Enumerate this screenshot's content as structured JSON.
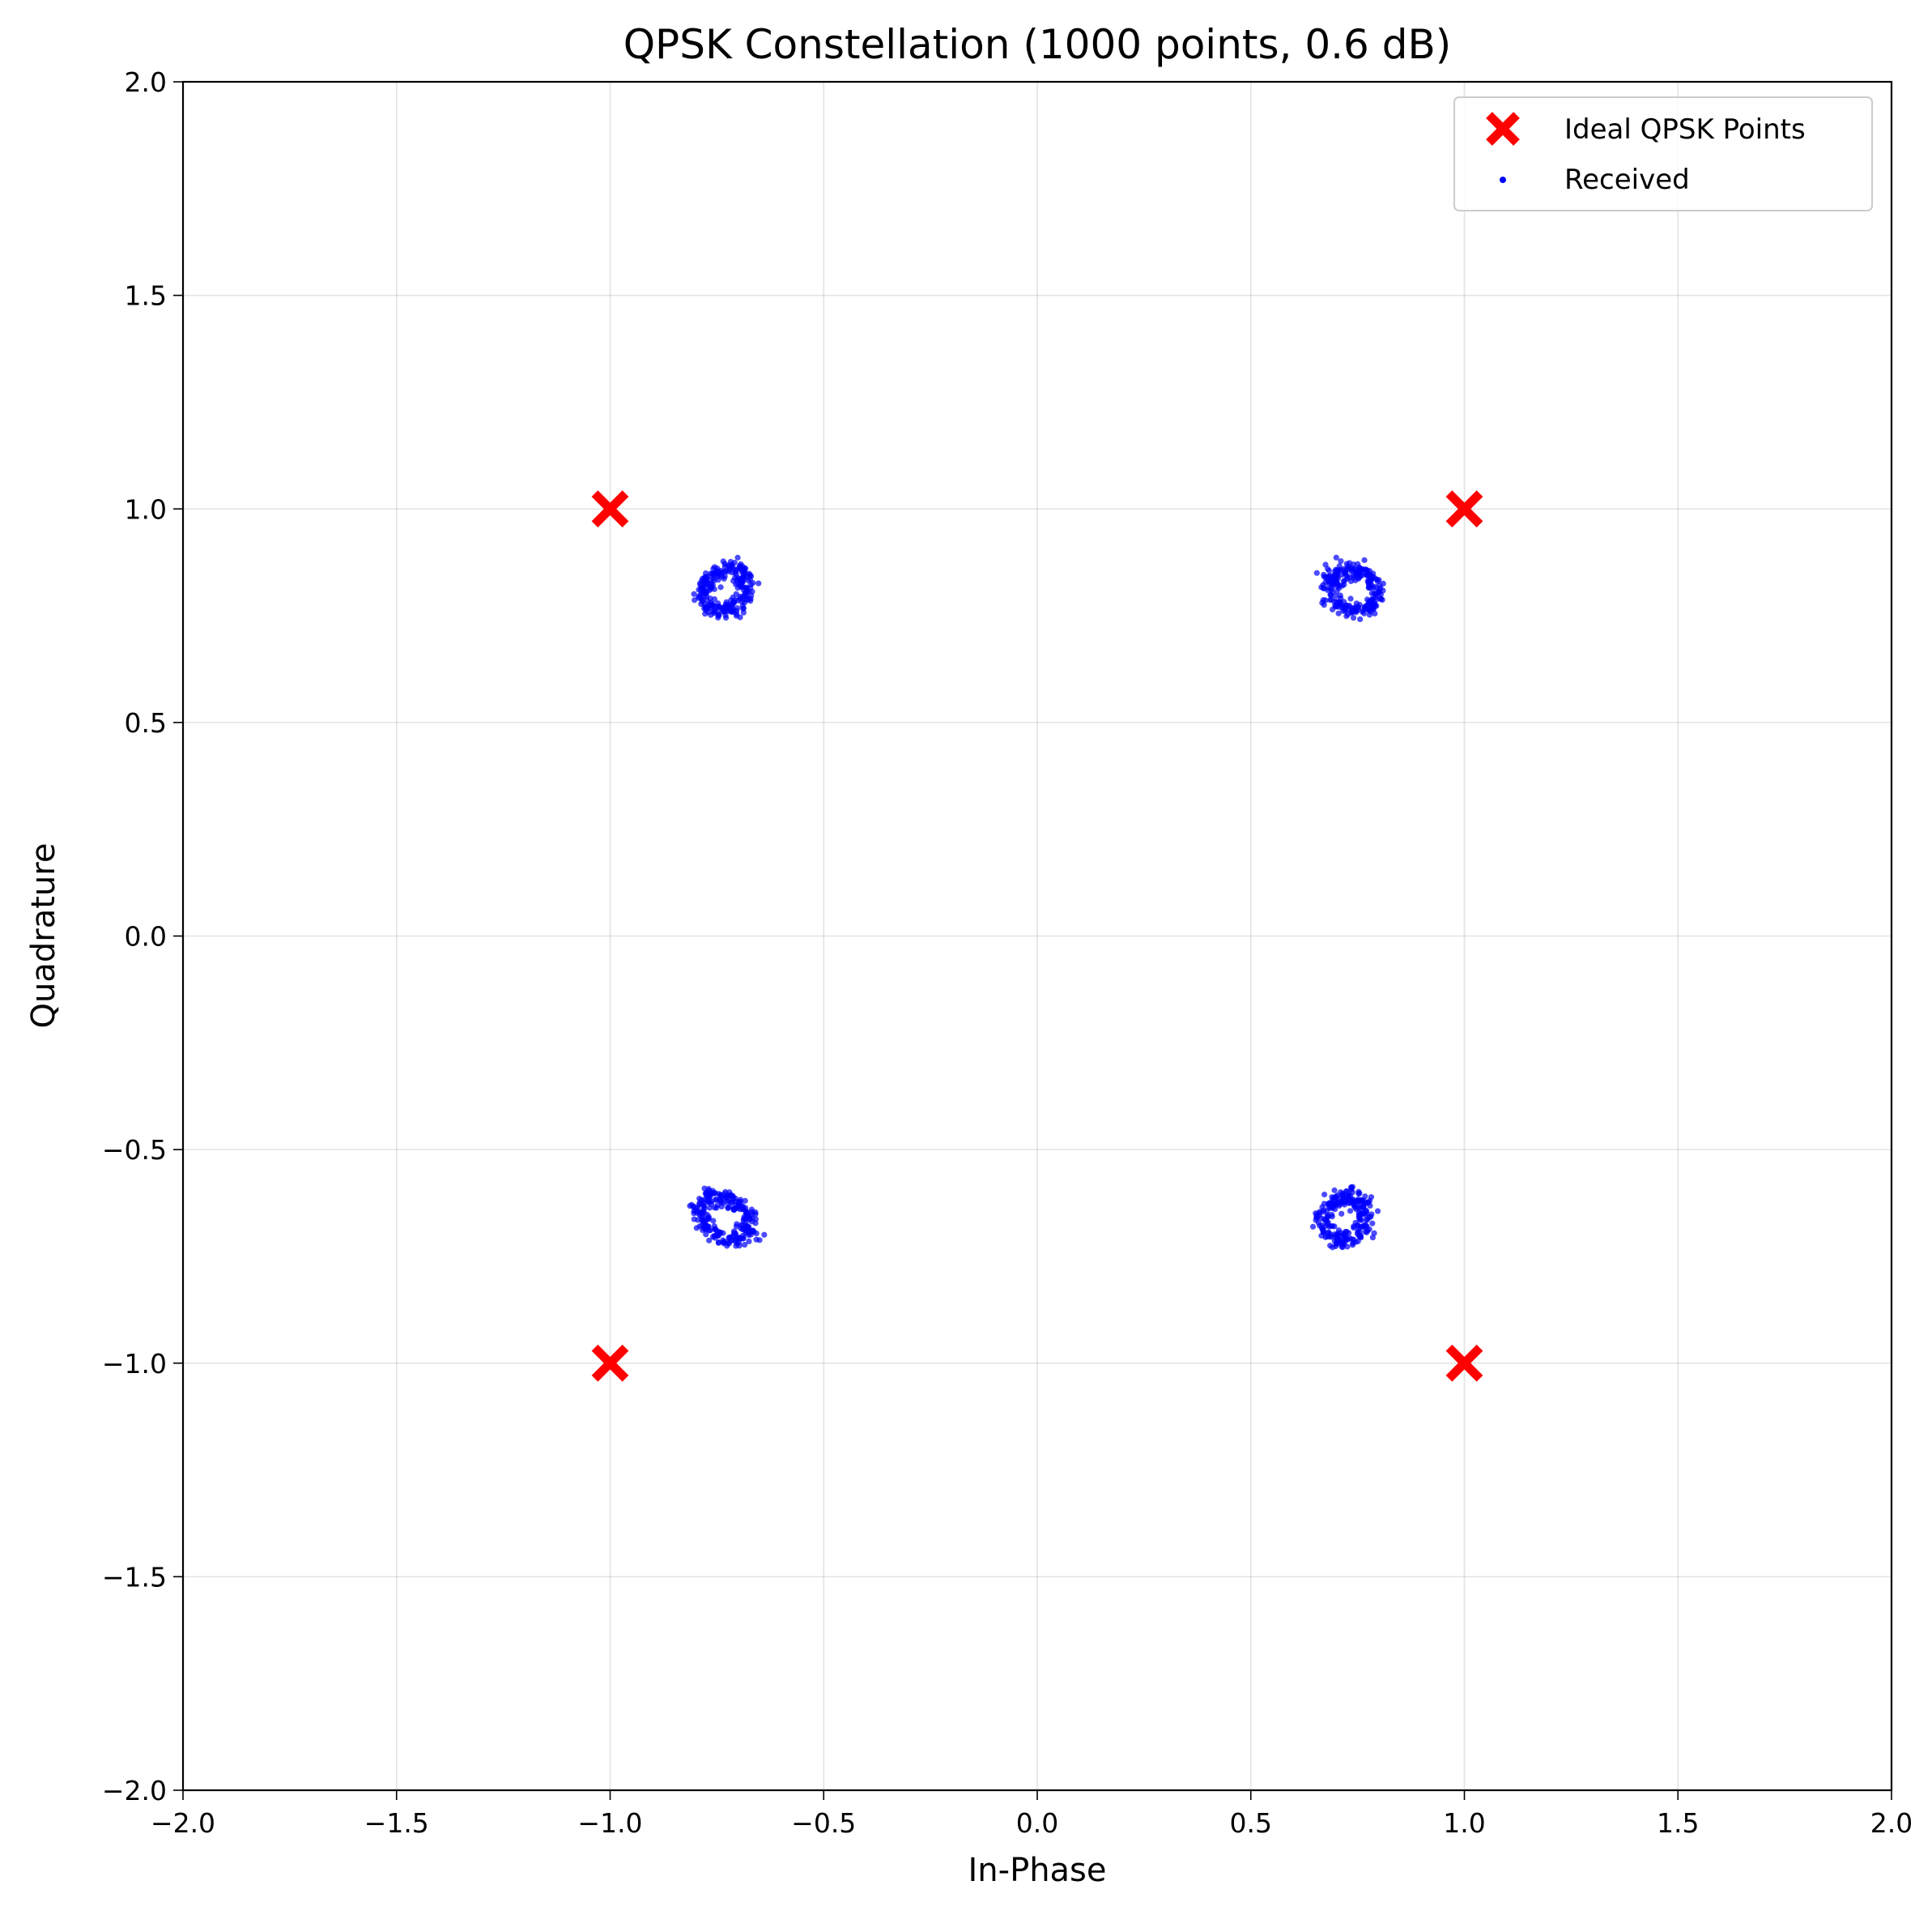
{
  "chart_data": {
    "type": "scatter",
    "title": "QPSK Constellation (1000 points, 0.6 dB)",
    "xlabel": "In-Phase",
    "ylabel": "Quadrature",
    "xlim": [
      -2.0,
      2.0
    ],
    "ylim": [
      -2.0,
      2.0
    ],
    "xticks": [
      -2.0,
      -1.5,
      -1.0,
      -0.5,
      0.0,
      0.5,
      1.0,
      1.5,
      2.0
    ],
    "yticks": [
      -2.0,
      -1.5,
      -1.0,
      -0.5,
      0.0,
      0.5,
      1.0,
      1.5,
      2.0
    ],
    "xtick_labels": [
      "−2.0",
      "−1.5",
      "−1.0",
      "−0.5",
      "0.0",
      "0.5",
      "1.0",
      "1.5",
      "2.0"
    ],
    "ytick_labels": [
      "−2.0",
      "−1.5",
      "−1.0",
      "−0.5",
      "0.0",
      "0.5",
      "1.0",
      "1.5",
      "2.0"
    ],
    "grid": true,
    "legend_position": "top-right",
    "series": [
      {
        "name": "Ideal QPSK Points",
        "marker": "x",
        "color": "#ff0000",
        "points": [
          [
            -1.0,
            1.0
          ],
          [
            1.0,
            1.0
          ],
          [
            -1.0,
            -1.0
          ],
          [
            1.0,
            -1.0
          ]
        ]
      },
      {
        "name": "Received",
        "marker": "dot",
        "color": "#0000ff",
        "clusters": [
          {
            "center": [
              -0.73,
              0.81
            ],
            "approx_x_range": [
              -0.84,
              -0.62
            ],
            "approx_y_range": [
              0.69,
              0.93
            ],
            "shape": "ring"
          },
          {
            "center": [
              0.74,
              0.81
            ],
            "approx_x_range": [
              0.63,
              0.86
            ],
            "approx_y_range": [
              0.7,
              0.94
            ],
            "shape": "ring"
          },
          {
            "center": [
              -0.73,
              -0.66
            ],
            "approx_x_range": [
              -0.84,
              -0.59
            ],
            "approx_y_range": [
              -0.78,
              -0.54
            ],
            "shape": "ring"
          },
          {
            "center": [
              0.72,
              -0.66
            ],
            "approx_x_range": [
              0.62,
              0.83
            ],
            "approx_y_range": [
              -0.79,
              -0.54
            ],
            "shape": "ring"
          }
        ]
      }
    ]
  }
}
